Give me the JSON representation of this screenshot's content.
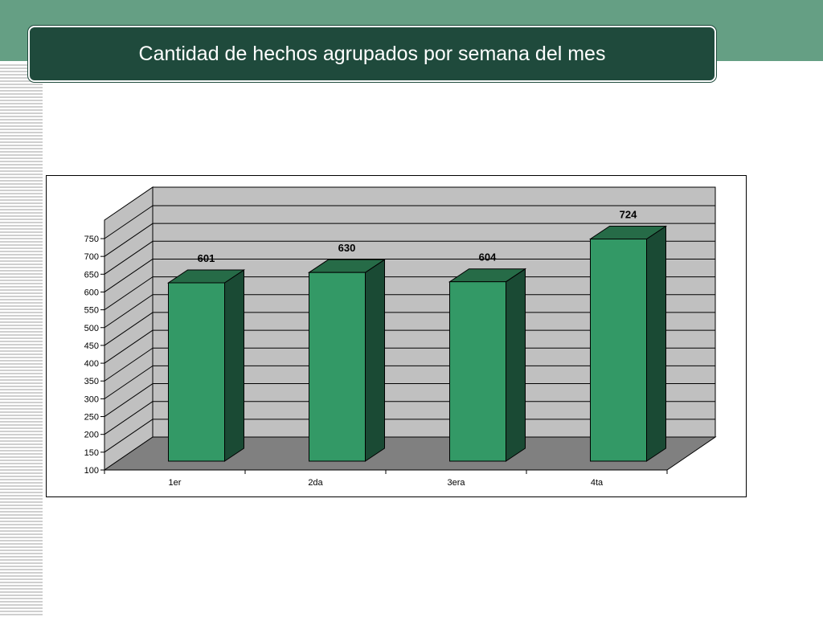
{
  "slide": {
    "title": "Cantidad de hechos agrupados por semana del mes"
  },
  "colors": {
    "band": "#659f84",
    "title_bg": "#1f4a3c",
    "bar_front": "#339966",
    "bar_top": "#266b47",
    "bar_side": "#1a4a34",
    "wall": "#c0c0c0",
    "floor": "#808080"
  },
  "chart_data": {
    "type": "bar",
    "title": "",
    "xlabel": "",
    "ylabel": "",
    "categories": [
      "1er",
      "2da",
      "3era",
      "4ta"
    ],
    "values": [
      601,
      630,
      604,
      724
    ],
    "ylim": [
      100,
      750
    ],
    "yticks": [
      100,
      150,
      200,
      250,
      300,
      350,
      400,
      450,
      500,
      550,
      600,
      650,
      700,
      750
    ],
    "grid": true,
    "legend": "none",
    "style": "3d-column"
  }
}
